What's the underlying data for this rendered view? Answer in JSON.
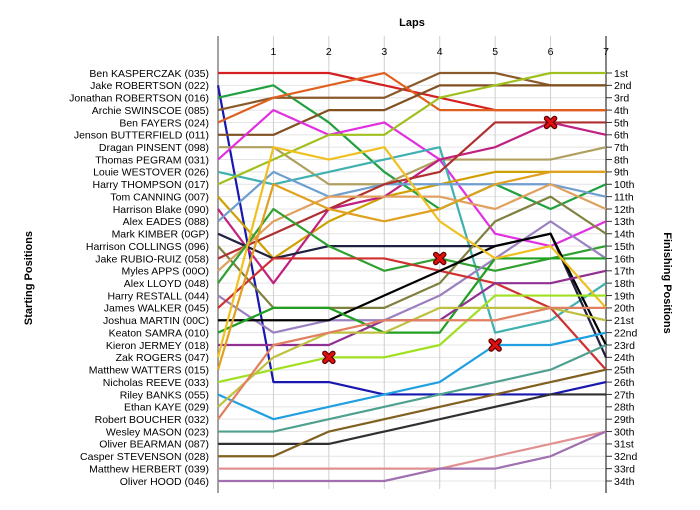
{
  "chart_data": {
    "type": "line",
    "title": "Laps",
    "xlabel": "Laps",
    "ylabel_left": "Starting Positions",
    "ylabel_right": "Finishing Positions",
    "x": [
      0,
      1,
      2,
      3,
      4,
      5,
      6,
      7
    ],
    "x_tick_labels": [
      "1",
      "2",
      "3",
      "4",
      "5",
      "6",
      "7"
    ],
    "xlim": [
      0,
      7
    ],
    "ylim": [
      1,
      34
    ],
    "grid": true,
    "starting_labels": [
      "Ben KASPERCZAK (035)",
      "Jake ROBERTSON (022)",
      "Jonathan ROBERTSON (016)",
      "Archie SWINSCOE (085)",
      "Ben FAYERS (024)",
      "Jenson BUTTERFIELD (011)",
      "Dragan PINSENT (098)",
      "Thomas PEGRAM (031)",
      "Louie WESTOVER (026)",
      "Harry THOMPSON (017)",
      "Tom CANNING (007)",
      "Harrison Blake (090)",
      "Alex EADES (088)",
      "Mark KIMBER (0GP)",
      "Harrison COLLINGS (096)",
      "Jake RUBIO-RUIZ (058)",
      "Myles APPS (00O)",
      "Alex LLOYD (048)",
      "Harry RESTALL (044)",
      "James WALKER (045)",
      "Joshua MARTIN (00C)",
      "Keaton SAMRA (010)",
      "Kieron JERMEY (018)",
      "Zak ROGERS (047)",
      "Matthew WATTERS (015)",
      "Nicholas REEVE (033)",
      "Riley BANKS (055)",
      "Ethan KAYE (029)",
      "Robert BOUCHER (032)",
      "Wesley MASON (023)",
      "Oliver BEARMAN (087)",
      "Casper STEVENSON (028)",
      "Matthew HERBERT (039)",
      "Oliver HOOD (046)"
    ],
    "finishing_labels": [
      "1st",
      "2nd",
      "3rd",
      "4th",
      "5th",
      "6th",
      "7th",
      "8th",
      "9th",
      "10th",
      "11th",
      "12th",
      "13th",
      "14th",
      "15th",
      "16th",
      "17th",
      "18th",
      "19th",
      "20th",
      "21st",
      "22nd",
      "23rd",
      "24th",
      "25th",
      "26th",
      "27th",
      "28th",
      "29th",
      "30th",
      "31st",
      "32nd",
      "33rd",
      "34th"
    ],
    "series": [
      {
        "color": "#d42020",
        "values": [
          1,
          1,
          1,
          2,
          3,
          4,
          4,
          4
        ]
      },
      {
        "color": "#1818b0",
        "values": [
          2,
          26,
          26,
          27,
          27,
          27,
          27,
          26
        ]
      },
      {
        "color": "#20a040",
        "values": [
          3,
          2,
          5,
          9,
          12,
          10,
          12,
          10
        ]
      },
      {
        "color": "#8b5a2b",
        "values": [
          4,
          3,
          3,
          3,
          1,
          1,
          2,
          2
        ]
      },
      {
        "color": "#e06020",
        "values": [
          5,
          3,
          2,
          1,
          4,
          4,
          4,
          4
        ]
      },
      {
        "color": "#805020",
        "values": [
          6,
          6,
          4,
          4,
          2,
          2,
          2,
          2
        ]
      },
      {
        "color": "#b0a060",
        "values": [
          7,
          7,
          10,
          10,
          8,
          8,
          8,
          7
        ]
      },
      {
        "color": "#e030e0",
        "values": [
          8,
          4,
          6,
          5,
          8,
          14,
          15,
          13
        ]
      },
      {
        "color": "#40b0b0",
        "values": [
          9,
          10,
          9,
          8,
          7,
          22,
          21,
          18
        ]
      },
      {
        "color": "#a0c020",
        "values": [
          10,
          8,
          6,
          6,
          3,
          2,
          1,
          1
        ]
      },
      {
        "color": "#d0a000",
        "values": [
          11,
          16,
          13,
          11,
          10,
          9,
          9,
          9
        ]
      },
      {
        "color": "#c02080",
        "values": [
          12,
          18,
          12,
          11,
          8,
          7,
          5,
          6
        ]
      },
      {
        "color": "#6f9fcf",
        "values": [
          13,
          9,
          11,
          10,
          10,
          10,
          10,
          11
        ]
      },
      {
        "color": "#202040",
        "values": [
          14,
          16,
          15,
          15,
          15,
          15,
          14,
          24
        ]
      },
      {
        "color": "#808040",
        "values": [
          15,
          20,
          20,
          20,
          18,
          13,
          11,
          14
        ]
      },
      {
        "color": "#b03030",
        "values": [
          16,
          14,
          12,
          10,
          9,
          5,
          5,
          5
        ]
      },
      {
        "color": "#e0a060",
        "values": [
          17,
          13,
          11,
          11,
          11,
          12,
          10,
          12
        ]
      },
      {
        "color": "#30a030",
        "values": [
          18,
          12,
          15,
          17,
          16,
          17,
          16,
          15
        ]
      },
      {
        "color": "#9a80c0",
        "values": [
          19,
          22,
          21,
          21,
          19,
          16,
          13,
          16
        ]
      },
      {
        "color": "#d03030",
        "values": [
          20,
          16,
          16,
          16,
          17,
          18,
          20,
          25
        ]
      },
      {
        "color": "#000000",
        "values": [
          21,
          21,
          21,
          19,
          17,
          15,
          14,
          23
        ]
      },
      {
        "color": "#20a020",
        "values": [
          22,
          20,
          20,
          22,
          22,
          16,
          16,
          16
        ]
      },
      {
        "color": "#903090",
        "values": [
          23,
          23,
          23,
          21,
          21,
          18,
          18,
          17
        ]
      },
      {
        "color": "#f0c020",
        "values": [
          24,
          7,
          8,
          7,
          13,
          16,
          15,
          20
        ]
      },
      {
        "color": "#e0a020",
        "values": [
          25,
          10,
          12,
          13,
          12,
          10,
          9,
          9
        ]
      },
      {
        "color": "#a0e020",
        "values": [
          26,
          25,
          24,
          24,
          23,
          19,
          19,
          19
        ]
      },
      {
        "color": "#20a0e0",
        "values": [
          27,
          29,
          28,
          27,
          26,
          23,
          23,
          22
        ]
      },
      {
        "color": "#c0c040",
        "values": [
          28,
          24,
          22,
          22,
          20,
          20,
          20,
          21
        ]
      },
      {
        "color": "#e08060",
        "values": [
          29,
          23,
          22,
          21,
          21,
          21,
          20,
          20
        ]
      },
      {
        "color": "#50a090",
        "values": [
          30,
          30,
          29,
          28,
          27,
          26,
          25,
          23
        ]
      },
      {
        "color": "#303030",
        "values": [
          31,
          31,
          31,
          30,
          29,
          28,
          27,
          27
        ]
      },
      {
        "color": "#806020",
        "values": [
          32,
          32,
          30,
          29,
          28,
          27,
          26,
          25
        ]
      },
      {
        "color": "#e09090",
        "values": [
          33,
          33,
          33,
          33,
          33,
          32,
          31,
          30
        ]
      },
      {
        "color": "#a070b0",
        "values": [
          34,
          34,
          34,
          34,
          33,
          33,
          32,
          30
        ]
      }
    ],
    "retirements": [
      {
        "x": 6,
        "y": 5
      },
      {
        "x": 4,
        "y": 16
      },
      {
        "x": 5,
        "y": 23
      },
      {
        "x": 2,
        "y": 24
      }
    ]
  }
}
